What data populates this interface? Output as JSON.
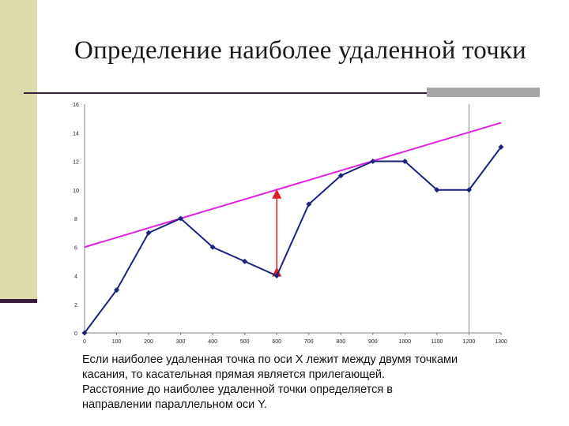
{
  "title": "Определение наиболее удаленной точки",
  "caption_lines": [
    "Если наиболее удаленная точка по оси X лежит между двумя точками",
    "касания, то касательная прямая является прилегающей.",
    "Расстояние до наиболее удаленной точки определяется в",
    "направлении параллельном оси Y."
  ],
  "colors": {
    "series": "#1a237e",
    "tangent": "#e020e0",
    "arrow": "#e02020",
    "vline": "#888888"
  },
  "chart_data": {
    "type": "line",
    "x": [
      0,
      100,
      200,
      300,
      400,
      500,
      600,
      700,
      800,
      900,
      1000,
      1100,
      1200,
      1300
    ],
    "values": [
      0,
      3,
      7,
      8,
      6,
      5,
      4,
      9,
      11,
      12,
      12,
      10,
      10,
      13
    ],
    "x_tick_labels": [
      "0",
      "100",
      "200",
      "300",
      "400",
      "500",
      "600",
      "700",
      "800",
      "900",
      "1000",
      "1100",
      "1200",
      "1300"
    ],
    "y_tick_labels": [
      "0",
      "2",
      "4",
      "6",
      "8",
      "10",
      "12",
      "14",
      "16"
    ],
    "xlim": [
      0,
      1300
    ],
    "ylim": [
      0,
      16
    ],
    "tangent_line": {
      "x": [
        0,
        1300
      ],
      "y": [
        6,
        14.7
      ]
    },
    "distance_arrow": {
      "x": 600,
      "y_from": 4,
      "y_to": 10
    },
    "vertical_line_x": 1200,
    "grid": false,
    "legend": "none"
  }
}
